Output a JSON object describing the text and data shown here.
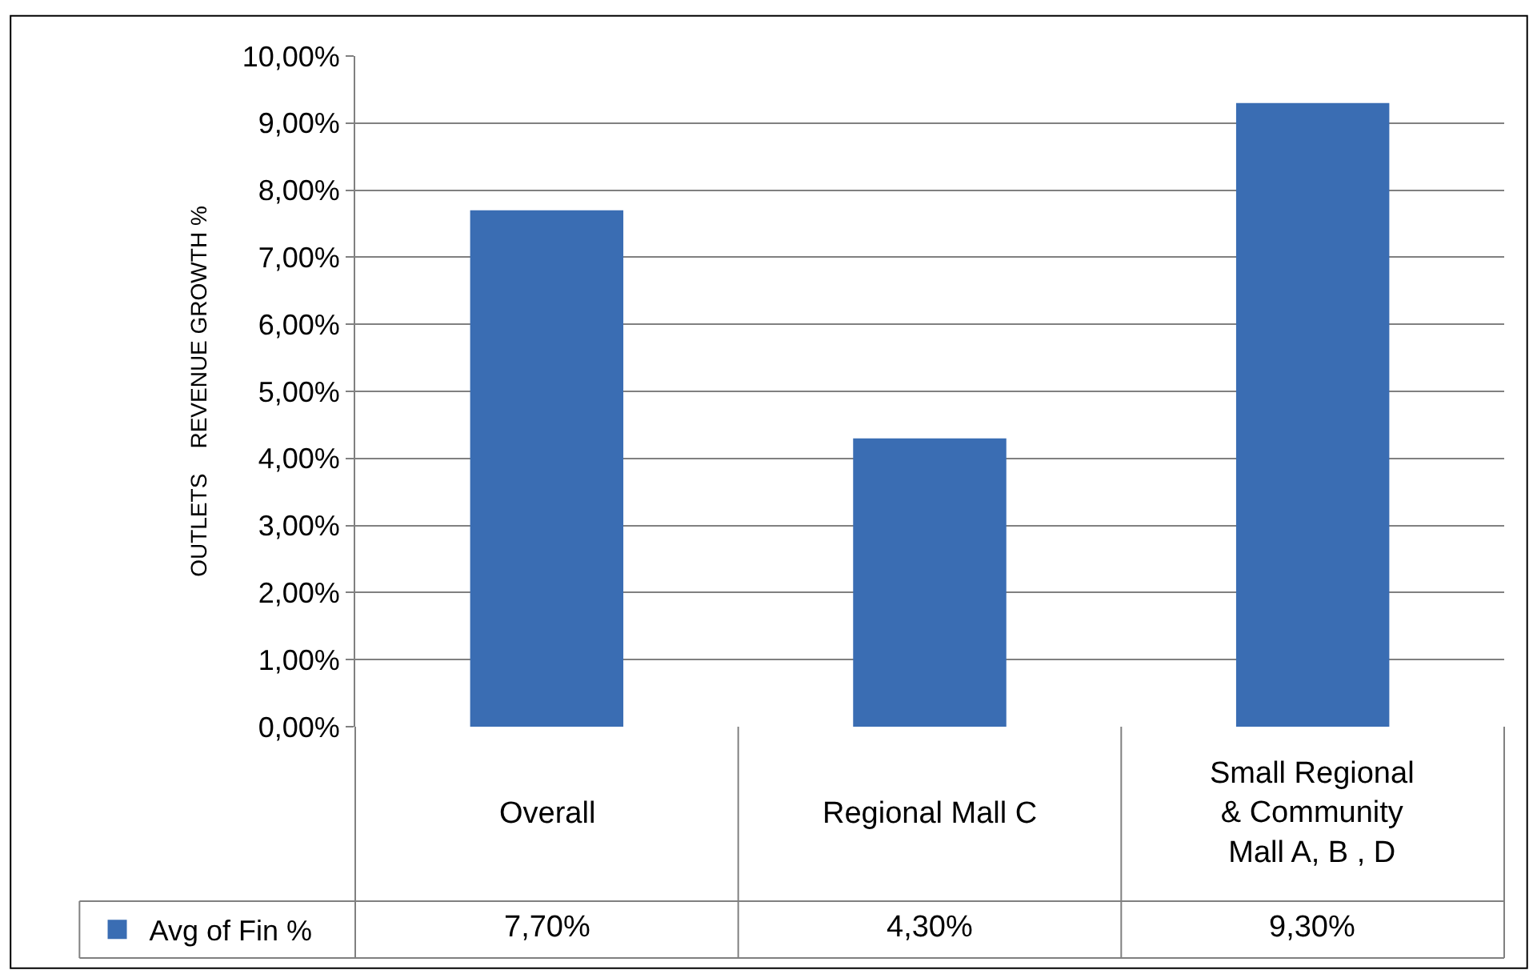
{
  "chart_data": {
    "type": "bar",
    "ylabel": "OUTLETS    REVENUE GROWTH %",
    "categories": [
      "Overall",
      "Regional Mall C",
      "Small Regional & Community Mall A, B , D"
    ],
    "series": [
      {
        "name": "Avg of Fin %",
        "color": "#3a6db3",
        "values": [
          7.7,
          4.3,
          9.3
        ],
        "value_labels": [
          "7,70%",
          "4,30%",
          "9,30%"
        ]
      }
    ],
    "ylim": [
      0,
      10
    ],
    "yticks": [
      {
        "value": 0,
        "label": "0,00%"
      },
      {
        "value": 1,
        "label": "1,00%"
      },
      {
        "value": 2,
        "label": "2,00%"
      },
      {
        "value": 3,
        "label": "3,00%"
      },
      {
        "value": 4,
        "label": "4,00%"
      },
      {
        "value": 5,
        "label": "5,00%"
      },
      {
        "value": 6,
        "label": "6,00%"
      },
      {
        "value": 7,
        "label": "7,00%"
      },
      {
        "value": 8,
        "label": "8,00%"
      },
      {
        "value": 9,
        "label": "9,00%"
      },
      {
        "value": 10,
        "label": "10,00%"
      }
    ],
    "grid": "y",
    "legend": "bottom left"
  }
}
